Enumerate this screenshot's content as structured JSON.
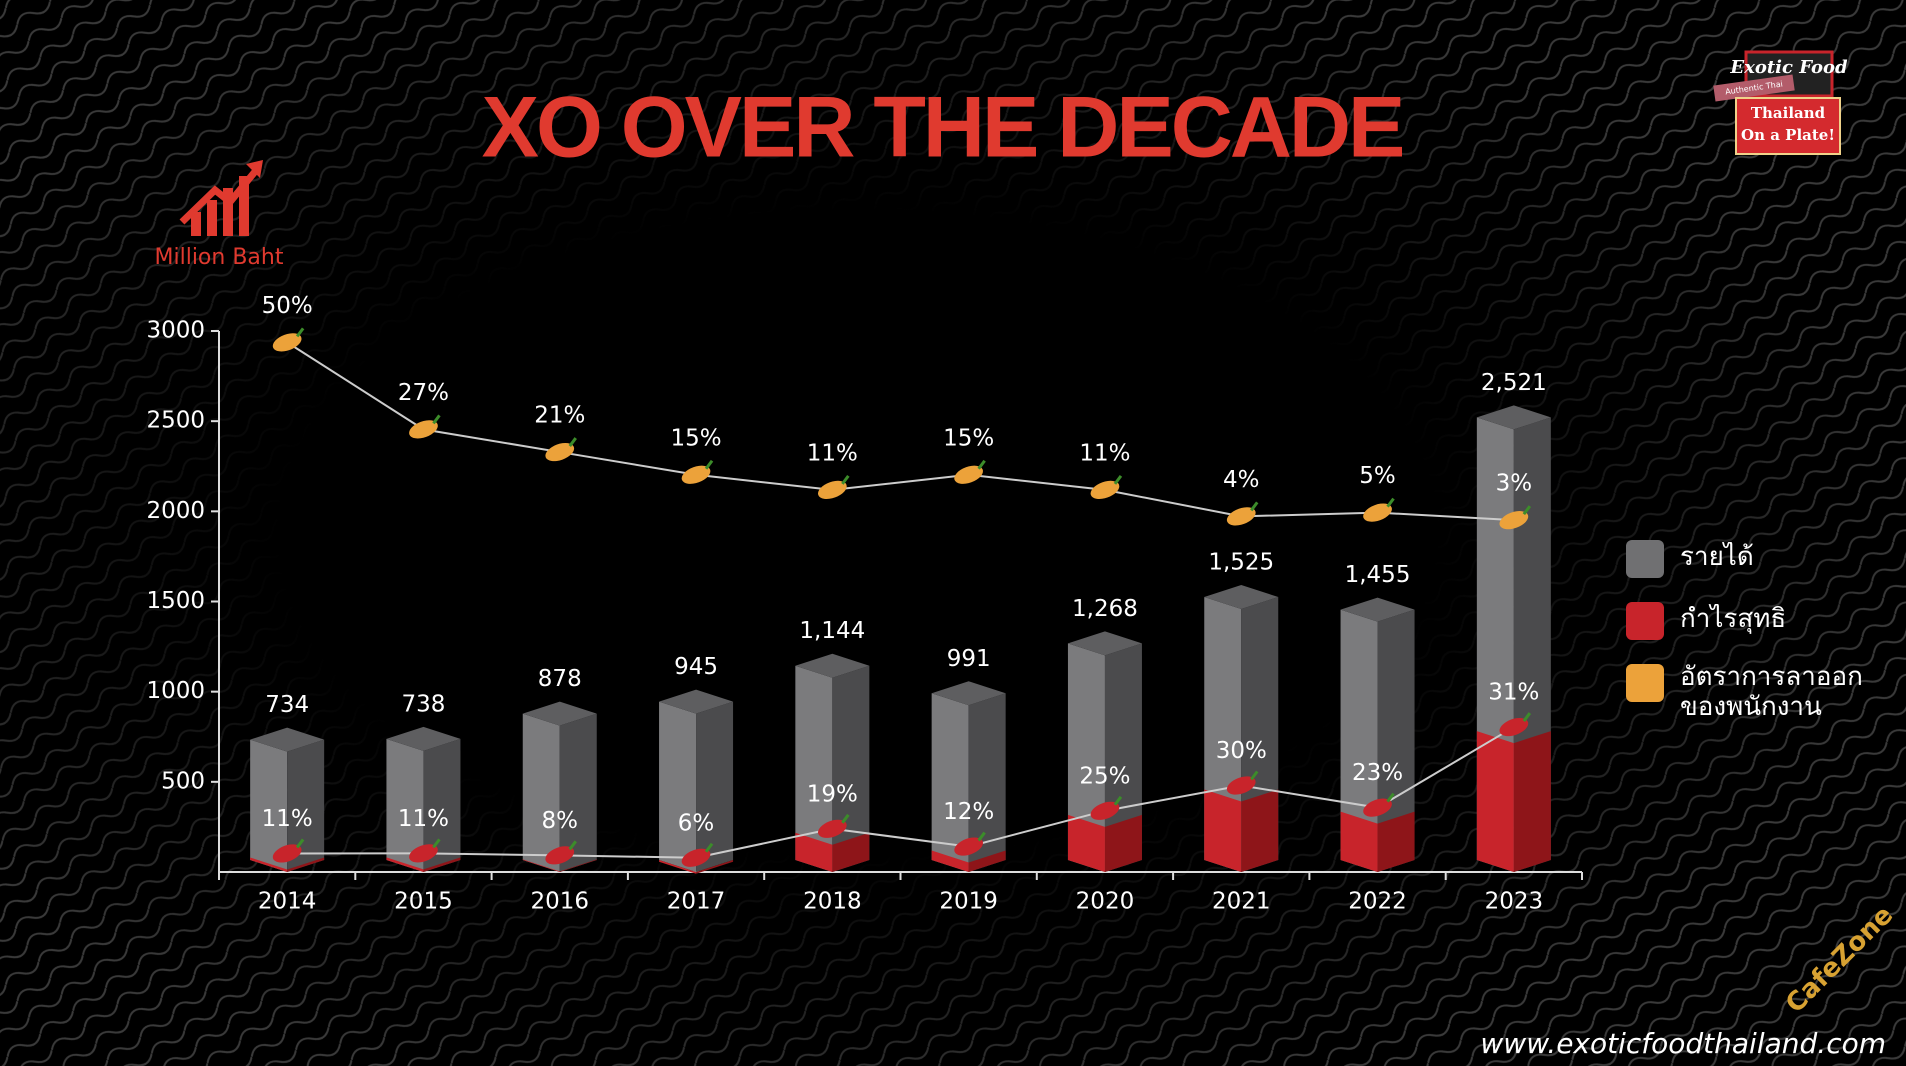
{
  "chart_data": {
    "type": "bar3d",
    "title": "XO OVER THE DECADE",
    "y_label": "Million Baht",
    "categories": [
      "2014",
      "2015",
      "2016",
      "2017",
      "2018",
      "2019",
      "2020",
      "2021",
      "2022",
      "2023"
    ],
    "series": [
      {
        "name": "รายได้",
        "color": "#707072",
        "values": [
          734,
          738,
          878,
          945,
          1144,
          991,
          1268,
          1525,
          1455,
          2521
        ],
        "value_labels": [
          "734",
          "738",
          "878",
          "945",
          "1,144",
          "991",
          "1,268",
          "1,525",
          "1,455",
          "2,521"
        ]
      },
      {
        "name": "กำไรสุทธิ",
        "color": "#c8242b",
        "values": [
          11,
          11,
          8,
          6,
          19,
          12,
          25,
          30,
          23,
          31
        ],
        "value_labels": [
          "11%",
          "11%",
          "8%",
          "6%",
          "19%",
          "12%",
          "25%",
          "30%",
          "23%",
          "31%"
        ]
      },
      {
        "name": "อัตราการลาออกของพนักงาน",
        "color": "#eca23a",
        "axis": "y2",
        "values": [
          50,
          27,
          21,
          15,
          11,
          15,
          11,
          4,
          5,
          3
        ],
        "value_labels": [
          "50%",
          "27%",
          "21%",
          "15%",
          "11%",
          "15%",
          "11%",
          "4%",
          "5%",
          "3%"
        ]
      }
    ],
    "ylim": [
      0,
      3000
    ],
    "yticks": [
      500,
      1000,
      1500,
      2000,
      2500,
      3000
    ],
    "y2lim": [
      -90,
      53
    ]
  },
  "logo": {
    "brand": "Exotic Food",
    "tagline": "Authentic Thai",
    "slogan": "Thailand On a Plate!"
  },
  "website": "www.exoticfoodthailand.com",
  "watermark": "CafeZone"
}
